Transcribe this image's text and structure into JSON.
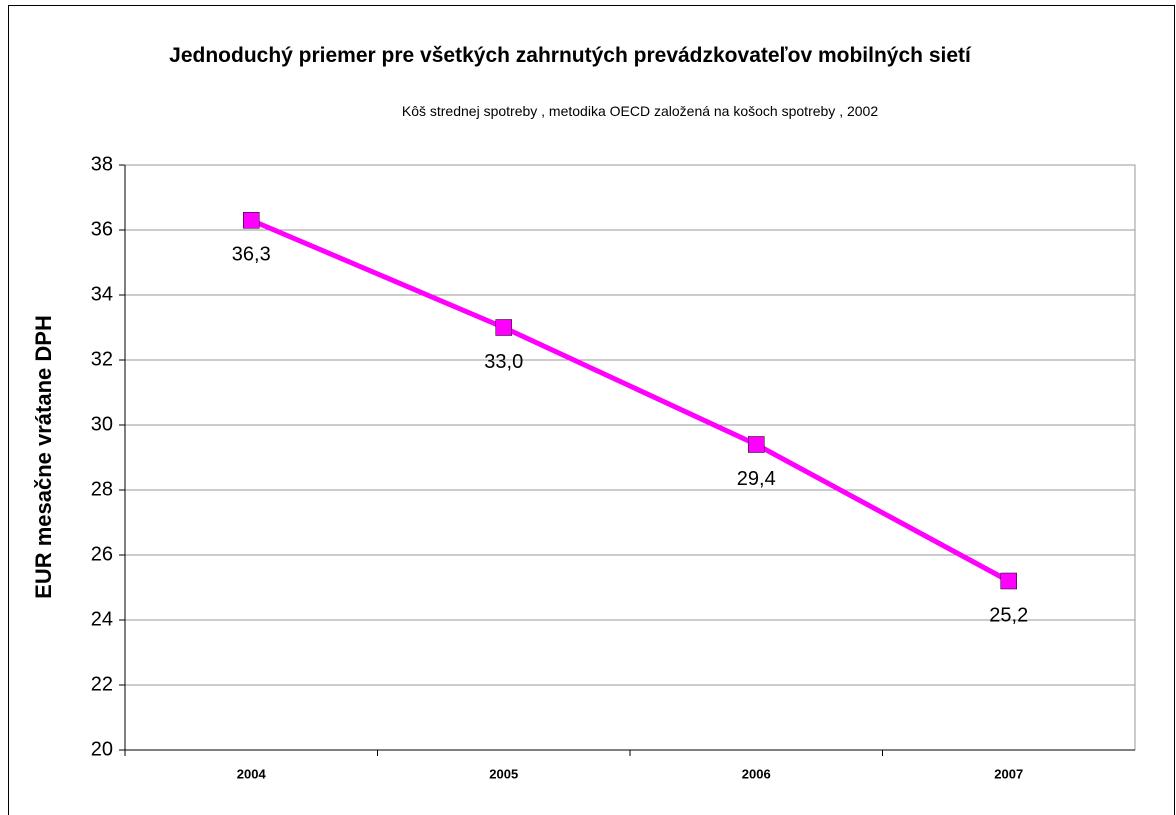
{
  "chart_data": {
    "type": "line",
    "title": "Jednoduchý priemer pre všetkých zahrnutých prevádzkovateľov mobilných sietí",
    "subtitle": "Kôš strednej spotreby , metodika OECD založená na košoch spotreby , 2002",
    "y_label": "EUR mesačne vrátane DPH",
    "categories": [
      "2004",
      "2005",
      "2006",
      "2007"
    ],
    "series": [
      {
        "name": "Jednoduchý priemer",
        "color": "#ff00ff",
        "values": [
          36.3,
          33.0,
          29.4,
          25.2
        ],
        "value_labels": [
          "36,3",
          "33,0",
          "29,4",
          "25,2"
        ]
      }
    ],
    "ylim": [
      20,
      38
    ],
    "yticks": [
      20,
      22,
      24,
      26,
      28,
      30,
      32,
      34,
      36,
      38
    ],
    "grid": true,
    "legend": false
  }
}
